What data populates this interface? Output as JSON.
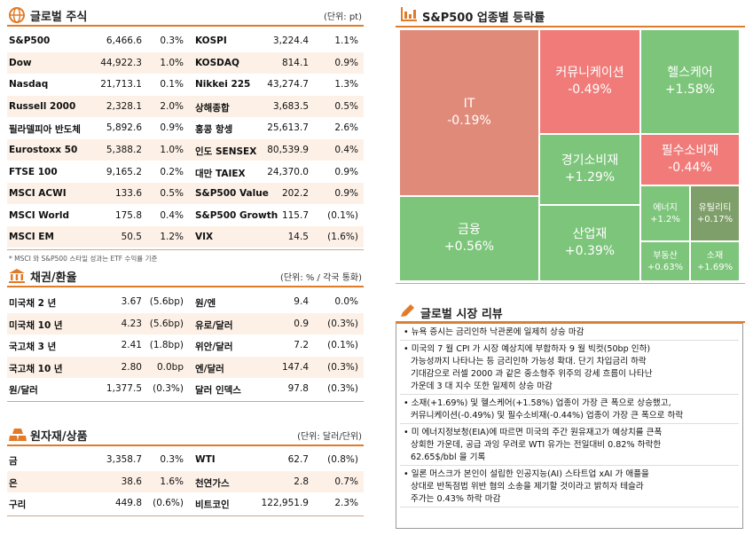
{
  "stocks": {
    "title": "글로벌 주식",
    "unit": "(단위: pt)",
    "rows": [
      [
        "S&P500",
        "6,466.6",
        "0.3%",
        "KOSPI",
        "3,224.4",
        "1.1%"
      ],
      [
        "Dow",
        "44,922.3",
        "1.0%",
        "KOSDAQ",
        "814.1",
        "0.9%"
      ],
      [
        "Nasdaq",
        "21,713.1",
        "0.1%",
        "Nikkei 225",
        "43,274.7",
        "1.3%"
      ],
      [
        "Russell 2000",
        "2,328.1",
        "2.0%",
        "상해종합",
        "3,683.5",
        "0.5%"
      ],
      [
        "필라델피아 반도체",
        "5,892.6",
        "0.9%",
        "홍콩 항셍",
        "25,613.7",
        "2.6%"
      ],
      [
        "Eurostoxx 50",
        "5,388.2",
        "1.0%",
        "인도 SENSEX",
        "80,539.9",
        "0.4%"
      ],
      [
        "FTSE 100",
        "9,165.2",
        "0.2%",
        "대만 TAIEX",
        "24,370.0",
        "0.9%"
      ],
      [
        "MSCI ACWI",
        "133.6",
        "0.5%",
        "S&P500 Value",
        "202.2",
        "0.9%"
      ],
      [
        "MSCI World",
        "175.8",
        "0.4%",
        "S&P500 Growth",
        "115.7",
        "(0.1%)"
      ],
      [
        "MSCI EM",
        "50.5",
        "1.2%",
        "VIX",
        "14.5",
        "(1.6%)"
      ]
    ],
    "note": "* MSCI 와 S&P500 스타일 성과는 ETF 수익률 기준"
  },
  "bonds": {
    "title": "채권/환율",
    "unit": "(단위: % / 각국 통화)",
    "rows": [
      [
        "미국채 2 년",
        "3.67",
        "(5.6bp)",
        "원/엔",
        "9.4",
        "0.0%"
      ],
      [
        "미국채 10 년",
        "4.23",
        "(5.6bp)",
        "유로/달러",
        "0.9",
        "(0.3%)"
      ],
      [
        "국고채 3 년",
        "2.41",
        "(1.8bp)",
        "위안/달러",
        "7.2",
        "(0.1%)"
      ],
      [
        "국고채 10 년",
        "2.80",
        "0.0bp",
        "엔/달러",
        "147.4",
        "(0.3%)"
      ],
      [
        "원/달러",
        "1,377.5",
        "(0.3%)",
        "달러 인덱스",
        "97.8",
        "(0.3%)"
      ]
    ]
  },
  "commodities": {
    "title": "원자재/상품",
    "unit": "(단위: 달러/단위)",
    "rows": [
      [
        "금",
        "3,358.7",
        "0.3%",
        "WTI",
        "62.7",
        "(0.8%)"
      ],
      [
        "은",
        "38.6",
        "1.6%",
        "천연가스",
        "2.8",
        "0.7%"
      ],
      [
        "구리",
        "449.8",
        "(0.6%)",
        "비트코인",
        "122,951.9",
        "2.3%"
      ]
    ]
  },
  "treemap": {
    "title": "S&P500 업종별 등락률",
    "tiles": [
      {
        "name": "IT",
        "change": "-0.19%"
      },
      {
        "name": "금융",
        "change": "+0.56%"
      },
      {
        "name": "커뮤니케이션",
        "change": "-0.49%"
      },
      {
        "name": "헬스케어",
        "change": "+1.58%"
      },
      {
        "name": "경기소비재",
        "change": "+1.29%"
      },
      {
        "name": "산업재",
        "change": "+0.39%"
      },
      {
        "name": "필수소비재",
        "change": "-0.44%"
      },
      {
        "name": "에너지",
        "change": "+1.2%"
      },
      {
        "name": "유틸리티",
        "change": "+0.17%"
      },
      {
        "name": "부동산",
        "change": "+0.63%"
      },
      {
        "name": "소재",
        "change": "+1.69%"
      }
    ]
  },
  "review": {
    "title": "글로벌 시장 리뷰",
    "items": [
      [
        "• 뉴욕 증시는 금리인하 낙관론에 일제히 상승 마감"
      ],
      [
        "• 미국의 7 월 CPI 가 시장 예상치에 부합하자 9 월 빅컷(50bp 인하)",
        "가능성까지 나타나는 등 금리인하 가능성 확대. 단기 차입금리 하락",
        "기대감으로 러셀 2000 과 같은 중소형주 위주의 강세 흐름이 나타난",
        "가운데 3 대 지수 또한 일제히 상승 마감"
      ],
      [
        "• 소재(+1.69%) 및 헬스케어(+1.58%) 업종이 가장 큰 폭으로 상승했고,",
        "커뮤니케이션(-0.49%) 및 필수소비재(-0.44%) 업종이 가장 큰 폭으로 하락"
      ],
      [
        "• 미 에너지정보청(EIA)에 따르면 미국의 주간 원유재고가 예상치를 큰폭",
        "상회한 가운데, 공급 과잉 우려로 WTI 유가는 전일대비 0.82% 하락한",
        "62.65$/bbl 을 기록"
      ],
      [
        "• 일론 머스크가 본인이 설립한 인공지능(AI) 스타트업 xAI 가 애플을",
        "상대로 반독점법 위반 혐의 소송을 제기할 것이라고 밝히자 테슬라",
        "주가는 0.43% 하락 마감"
      ]
    ]
  }
}
